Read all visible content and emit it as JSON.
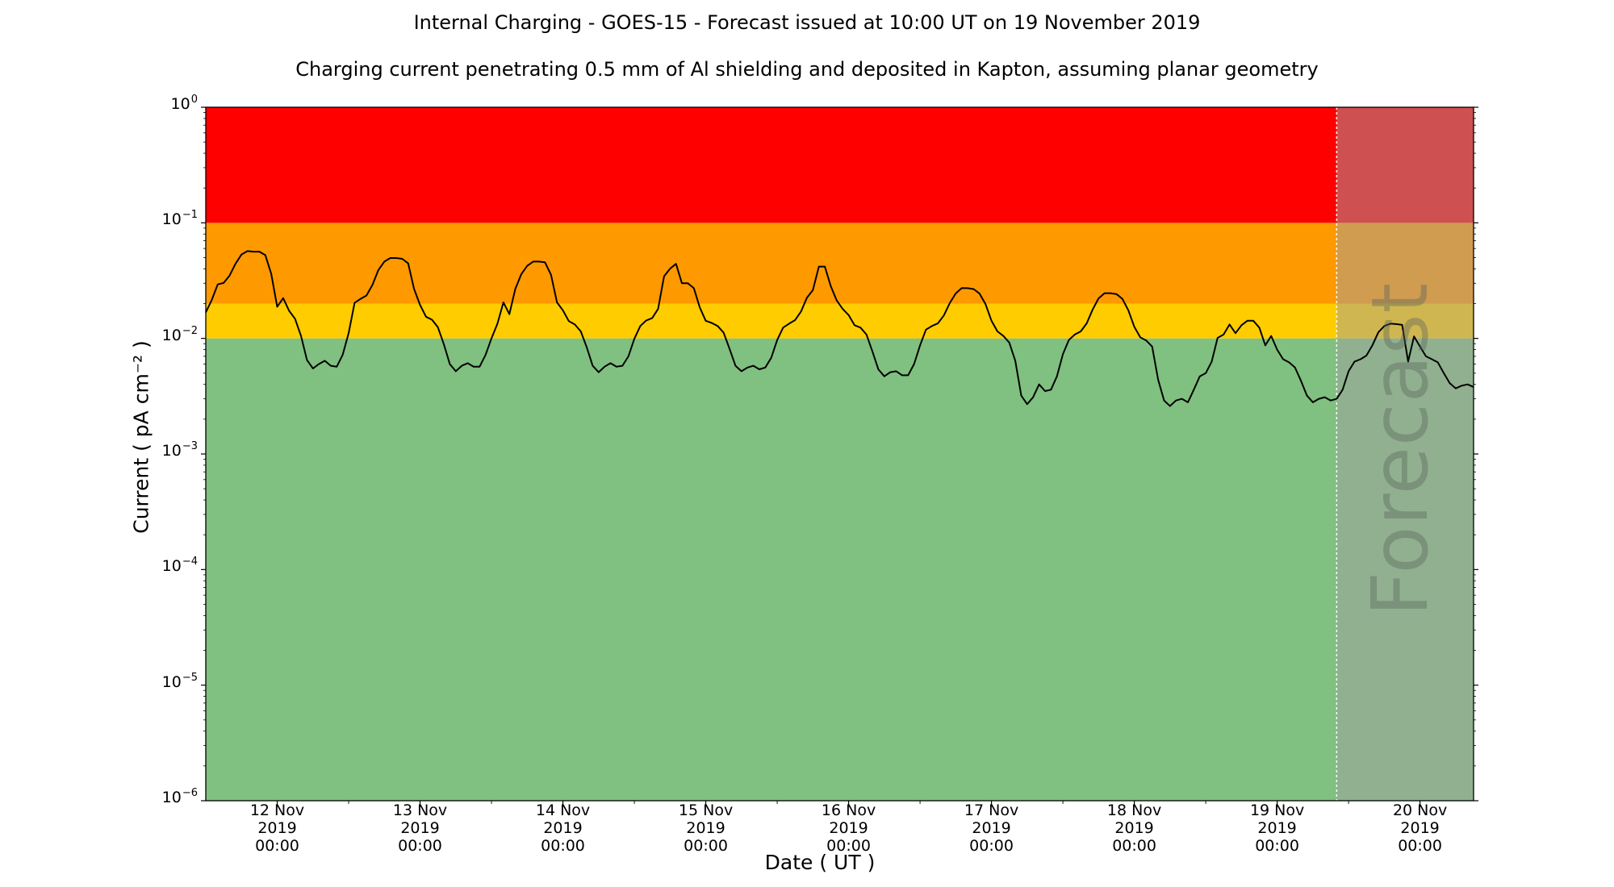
{
  "chart_data": {
    "type": "line",
    "title": "Internal Charging - GOES-15 - Forecast issued at 10:00 UT on 19 November 2019",
    "subtitle": "Charging current penetrating 0.5 mm of Al shielding and deposited in Kapton, assuming planar geometry",
    "xlabel": "Date ( UT )",
    "ylabel": "Current ( pA cm⁻² )",
    "y_scale": "log",
    "ylim": [
      1e-06,
      1
    ],
    "xlim": [
      "2019-11-11T12:00",
      "2019-11-20T09:00"
    ],
    "y_ticks": [
      {
        "base": "10",
        "exp": "−6",
        "value": 1e-06
      },
      {
        "base": "10",
        "exp": "−5",
        "value": 1e-05
      },
      {
        "base": "10",
        "exp": "−4",
        "value": 0.0001
      },
      {
        "base": "10",
        "exp": "−3",
        "value": 0.001
      },
      {
        "base": "10",
        "exp": "−2",
        "value": 0.01
      },
      {
        "base": "10",
        "exp": "−1",
        "value": 0.1
      },
      {
        "base": "10",
        "exp": "0",
        "value": 1
      }
    ],
    "x_ticks": [
      {
        "line1": "12 Nov",
        "line2": "2019",
        "line3": "00:00",
        "value": "2019-11-12T00:00"
      },
      {
        "line1": "13 Nov",
        "line2": "2019",
        "line3": "00:00",
        "value": "2019-11-13T00:00"
      },
      {
        "line1": "14 Nov",
        "line2": "2019",
        "line3": "00:00",
        "value": "2019-11-14T00:00"
      },
      {
        "line1": "15 Nov",
        "line2": "2019",
        "line3": "00:00",
        "value": "2019-11-15T00:00"
      },
      {
        "line1": "16 Nov",
        "line2": "2019",
        "line3": "00:00",
        "value": "2019-11-16T00:00"
      },
      {
        "line1": "17 Nov",
        "line2": "2019",
        "line3": "00:00",
        "value": "2019-11-17T00:00"
      },
      {
        "line1": "18 Nov",
        "line2": "2019",
        "line3": "00:00",
        "value": "2019-11-18T00:00"
      },
      {
        "line1": "19 Nov",
        "line2": "2019",
        "line3": "00:00",
        "value": "2019-11-19T00:00"
      },
      {
        "line1": "20 Nov",
        "line2": "2019",
        "line3": "00:00",
        "value": "2019-11-20T00:00"
      }
    ],
    "risk_bands": [
      {
        "from": 1e-06,
        "to": 0.01,
        "color": "#80c080"
      },
      {
        "from": 0.01,
        "to": 0.02,
        "color": "#ffcc00"
      },
      {
        "from": 0.02,
        "to": 0.1,
        "color": "#ff9900"
      },
      {
        "from": 0.1,
        "to": 1,
        "color": "#ff0000"
      }
    ],
    "forecast_region": {
      "start": "2019-11-19T10:00",
      "end": "2019-11-20T09:00",
      "label": "Forecast",
      "overlay_color": "#a0a0a0",
      "overlay_opacity": 0.5
    },
    "grid": false,
    "series": [
      {
        "color": "#000000",
        "points": [
          [
            "2019-11-11T12:00",
            0.0168
          ],
          [
            "2019-11-11T13:00",
            0.0215
          ],
          [
            "2019-11-11T14:00",
            0.0293
          ],
          [
            "2019-11-11T15:00",
            0.0302
          ],
          [
            "2019-11-11T16:00",
            0.035
          ],
          [
            "2019-11-11T17:00",
            0.0444
          ],
          [
            "2019-11-11T18:00",
            0.0532
          ],
          [
            "2019-11-11T19:00",
            0.0569
          ],
          [
            "2019-11-11T20:00",
            0.0563
          ],
          [
            "2019-11-11T21:00",
            0.0563
          ],
          [
            "2019-11-11T22:00",
            0.0525
          ],
          [
            "2019-11-11T23:00",
            0.0362
          ],
          [
            "2019-11-12T00:00",
            0.0188
          ],
          [
            "2019-11-12T01:00",
            0.0223
          ],
          [
            "2019-11-12T02:00",
            0.0173
          ],
          [
            "2019-11-12T03:00",
            0.0148
          ],
          [
            "2019-11-12T04:00",
            0.0105
          ],
          [
            "2019-11-12T05:00",
            0.0065
          ],
          [
            "2019-11-12T06:00",
            0.0055
          ],
          [
            "2019-11-12T07:00",
            0.006
          ],
          [
            "2019-11-12T08:00",
            0.0064
          ],
          [
            "2019-11-12T09:00",
            0.0058
          ],
          [
            "2019-11-12T10:00",
            0.0057
          ],
          [
            "2019-11-12T11:00",
            0.0072
          ],
          [
            "2019-11-12T12:00",
            0.0111
          ],
          [
            "2019-11-12T13:00",
            0.0203
          ],
          [
            "2019-11-12T14:00",
            0.022
          ],
          [
            "2019-11-12T15:00",
            0.0235
          ],
          [
            "2019-11-12T16:00",
            0.029
          ],
          [
            "2019-11-12T17:00",
            0.0391
          ],
          [
            "2019-11-12T18:00",
            0.0462
          ],
          [
            "2019-11-12T19:00",
            0.0496
          ],
          [
            "2019-11-12T20:00",
            0.0496
          ],
          [
            "2019-11-12T21:00",
            0.0488
          ],
          [
            "2019-11-12T22:00",
            0.0446
          ],
          [
            "2019-11-12T23:00",
            0.0268
          ],
          [
            "2019-11-13T00:00",
            0.0195
          ],
          [
            "2019-11-13T01:00",
            0.0154
          ],
          [
            "2019-11-13T02:00",
            0.0145
          ],
          [
            "2019-11-13T03:00",
            0.0125
          ],
          [
            "2019-11-13T04:00",
            0.0089
          ],
          [
            "2019-11-13T05:00",
            0.006
          ],
          [
            "2019-11-13T06:00",
            0.0052
          ],
          [
            "2019-11-13T07:00",
            0.0058
          ],
          [
            "2019-11-13T08:00",
            0.0061
          ],
          [
            "2019-11-13T09:00",
            0.0057
          ],
          [
            "2019-11-13T10:00",
            0.0057
          ],
          [
            "2019-11-13T11:00",
            0.0072
          ],
          [
            "2019-11-13T12:00",
            0.01
          ],
          [
            "2019-11-13T13:00",
            0.0134
          ],
          [
            "2019-11-13T14:00",
            0.0205
          ],
          [
            "2019-11-13T15:00",
            0.0162
          ],
          [
            "2019-11-13T16:00",
            0.0267
          ],
          [
            "2019-11-13T17:00",
            0.0359
          ],
          [
            "2019-11-13T18:00",
            0.0424
          ],
          [
            "2019-11-13T19:00",
            0.0462
          ],
          [
            "2019-11-13T20:00",
            0.0462
          ],
          [
            "2019-11-13T21:00",
            0.0455
          ],
          [
            "2019-11-13T22:00",
            0.0355
          ],
          [
            "2019-11-13T23:00",
            0.0205
          ],
          [
            "2019-11-14T00:00",
            0.0175
          ],
          [
            "2019-11-14T01:00",
            0.0141
          ],
          [
            "2019-11-14T02:00",
            0.0132
          ],
          [
            "2019-11-14T03:00",
            0.0115
          ],
          [
            "2019-11-14T04:00",
            0.0084
          ],
          [
            "2019-11-14T05:00",
            0.0058
          ],
          [
            "2019-11-14T06:00",
            0.0051
          ],
          [
            "2019-11-14T07:00",
            0.0057
          ],
          [
            "2019-11-14T08:00",
            0.0061
          ],
          [
            "2019-11-14T09:00",
            0.0057
          ],
          [
            "2019-11-14T10:00",
            0.0058
          ],
          [
            "2019-11-14T11:00",
            0.007
          ],
          [
            "2019-11-14T12:00",
            0.0099
          ],
          [
            "2019-11-14T13:00",
            0.0128
          ],
          [
            "2019-11-14T14:00",
            0.0143
          ],
          [
            "2019-11-14T15:00",
            0.015
          ],
          [
            "2019-11-14T16:00",
            0.018
          ],
          [
            "2019-11-14T17:00",
            0.0345
          ],
          [
            "2019-11-14T18:00",
            0.0401
          ],
          [
            "2019-11-14T19:00",
            0.0442
          ],
          [
            "2019-11-14T20:00",
            0.03
          ],
          [
            "2019-11-14T21:00",
            0.03
          ],
          [
            "2019-11-14T22:00",
            0.0272
          ],
          [
            "2019-11-14T23:00",
            0.0185
          ],
          [
            "2019-11-15T00:00",
            0.0142
          ],
          [
            "2019-11-15T01:00",
            0.0136
          ],
          [
            "2019-11-15T02:00",
            0.0128
          ],
          [
            "2019-11-15T03:00",
            0.0112
          ],
          [
            "2019-11-15T04:00",
            0.0081
          ],
          [
            "2019-11-15T05:00",
            0.0058
          ],
          [
            "2019-11-15T06:00",
            0.0052
          ],
          [
            "2019-11-15T07:00",
            0.0056
          ],
          [
            "2019-11-15T08:00",
            0.0058
          ],
          [
            "2019-11-15T09:00",
            0.0054
          ],
          [
            "2019-11-15T10:00",
            0.0056
          ],
          [
            "2019-11-15T11:00",
            0.0068
          ],
          [
            "2019-11-15T12:00",
            0.0097
          ],
          [
            "2019-11-15T13:00",
            0.0124
          ],
          [
            "2019-11-15T14:00",
            0.0134
          ],
          [
            "2019-11-15T15:00",
            0.0144
          ],
          [
            "2019-11-15T16:00",
            0.0171
          ],
          [
            "2019-11-15T17:00",
            0.0225
          ],
          [
            "2019-11-15T18:00",
            0.0262
          ],
          [
            "2019-11-15T19:00",
            0.0418
          ],
          [
            "2019-11-15T20:00",
            0.0418
          ],
          [
            "2019-11-15T21:00",
            0.0284
          ],
          [
            "2019-11-15T22:00",
            0.0213
          ],
          [
            "2019-11-15T23:00",
            0.018
          ],
          [
            "2019-11-16T00:00",
            0.0159
          ],
          [
            "2019-11-16T01:00",
            0.013
          ],
          [
            "2019-11-16T02:00",
            0.0124
          ],
          [
            "2019-11-16T03:00",
            0.0108
          ],
          [
            "2019-11-16T04:00",
            0.0077
          ],
          [
            "2019-11-16T05:00",
            0.0054
          ],
          [
            "2019-11-16T06:00",
            0.0047
          ],
          [
            "2019-11-16T07:00",
            0.0051
          ],
          [
            "2019-11-16T08:00",
            0.0052
          ],
          [
            "2019-11-16T09:00",
            0.0048
          ],
          [
            "2019-11-16T10:00",
            0.0048
          ],
          [
            "2019-11-16T11:00",
            0.006
          ],
          [
            "2019-11-16T12:00",
            0.0087
          ],
          [
            "2019-11-16T13:00",
            0.0119
          ],
          [
            "2019-11-16T14:00",
            0.0128
          ],
          [
            "2019-11-16T15:00",
            0.0135
          ],
          [
            "2019-11-16T16:00",
            0.0158
          ],
          [
            "2019-11-16T17:00",
            0.0202
          ],
          [
            "2019-11-16T18:00",
            0.0245
          ],
          [
            "2019-11-16T19:00",
            0.0273
          ],
          [
            "2019-11-16T20:00",
            0.0272
          ],
          [
            "2019-11-16T21:00",
            0.0267
          ],
          [
            "2019-11-16T22:00",
            0.0244
          ],
          [
            "2019-11-16T23:00",
            0.0198
          ],
          [
            "2019-11-17T00:00",
            0.0142
          ],
          [
            "2019-11-17T01:00",
            0.0115
          ],
          [
            "2019-11-17T02:00",
            0.0105
          ],
          [
            "2019-11-17T03:00",
            0.0092
          ],
          [
            "2019-11-17T04:00",
            0.0064
          ],
          [
            "2019-11-17T05:00",
            0.0032
          ],
          [
            "2019-11-17T06:00",
            0.0027
          ],
          [
            "2019-11-17T07:00",
            0.0031
          ],
          [
            "2019-11-17T08:00",
            0.004
          ],
          [
            "2019-11-17T09:00",
            0.0035
          ],
          [
            "2019-11-17T10:00",
            0.0036
          ],
          [
            "2019-11-17T11:00",
            0.0047
          ],
          [
            "2019-11-17T12:00",
            0.0073
          ],
          [
            "2019-11-17T13:00",
            0.0097
          ],
          [
            "2019-11-17T14:00",
            0.0108
          ],
          [
            "2019-11-17T15:00",
            0.0115
          ],
          [
            "2019-11-17T16:00",
            0.0135
          ],
          [
            "2019-11-17T17:00",
            0.0178
          ],
          [
            "2019-11-17T18:00",
            0.0222
          ],
          [
            "2019-11-17T19:00",
            0.0246
          ],
          [
            "2019-11-17T20:00",
            0.0246
          ],
          [
            "2019-11-17T21:00",
            0.0242
          ],
          [
            "2019-11-17T22:00",
            0.022
          ],
          [
            "2019-11-17T23:00",
            0.0175
          ],
          [
            "2019-11-18T00:00",
            0.0126
          ],
          [
            "2019-11-18T01:00",
            0.0102
          ],
          [
            "2019-11-18T02:00",
            0.0096
          ],
          [
            "2019-11-18T03:00",
            0.0085
          ],
          [
            "2019-11-18T04:00",
            0.0044
          ],
          [
            "2019-11-18T05:00",
            0.0029
          ],
          [
            "2019-11-18T06:00",
            0.0026
          ],
          [
            "2019-11-18T07:00",
            0.0029
          ],
          [
            "2019-11-18T08:00",
            0.003
          ],
          [
            "2019-11-18T09:00",
            0.0028
          ],
          [
            "2019-11-18T10:00",
            0.0036
          ],
          [
            "2019-11-18T11:00",
            0.0047
          ],
          [
            "2019-11-18T12:00",
            0.005
          ],
          [
            "2019-11-18T13:00",
            0.0063
          ],
          [
            "2019-11-18T14:00",
            0.0101
          ],
          [
            "2019-11-18T15:00",
            0.0108
          ],
          [
            "2019-11-18T16:00",
            0.0132
          ],
          [
            "2019-11-18T17:00",
            0.0111
          ],
          [
            "2019-11-18T18:00",
            0.013
          ],
          [
            "2019-11-18T19:00",
            0.0142
          ],
          [
            "2019-11-18T20:00",
            0.0142
          ],
          [
            "2019-11-18T21:00",
            0.0124
          ],
          [
            "2019-11-18T22:00",
            0.0087
          ],
          [
            "2019-11-18T23:00",
            0.0105
          ],
          [
            "2019-11-19T00:00",
            0.008
          ],
          [
            "2019-11-19T01:00",
            0.0066
          ],
          [
            "2019-11-19T02:00",
            0.0062
          ],
          [
            "2019-11-19T03:00",
            0.0056
          ],
          [
            "2019-11-19T04:00",
            0.0043
          ],
          [
            "2019-11-19T05:00",
            0.0032
          ],
          [
            "2019-11-19T06:00",
            0.0028
          ],
          [
            "2019-11-19T07:00",
            0.003
          ],
          [
            "2019-11-19T08:00",
            0.0031
          ],
          [
            "2019-11-19T09:00",
            0.0029
          ],
          [
            "2019-11-19T10:00",
            0.003
          ],
          [
            "2019-11-19T11:00",
            0.0036
          ],
          [
            "2019-11-19T12:00",
            0.0052
          ],
          [
            "2019-11-19T13:00",
            0.0063
          ],
          [
            "2019-11-19T14:00",
            0.0066
          ],
          [
            "2019-11-19T15:00",
            0.0071
          ],
          [
            "2019-11-19T16:00",
            0.0087
          ],
          [
            "2019-11-19T17:00",
            0.0113
          ],
          [
            "2019-11-19T18:00",
            0.0128
          ],
          [
            "2019-11-19T19:00",
            0.0134
          ],
          [
            "2019-11-19T20:00",
            0.0133
          ],
          [
            "2019-11-19T21:00",
            0.0131
          ],
          [
            "2019-11-19T22:00",
            0.0063
          ],
          [
            "2019-11-19T23:00",
            0.0104
          ],
          [
            "2019-11-20T00:00",
            0.0085
          ],
          [
            "2019-11-20T01:00",
            0.007
          ],
          [
            "2019-11-20T02:00",
            0.0066
          ],
          [
            "2019-11-20T03:00",
            0.0062
          ],
          [
            "2019-11-20T04:00",
            0.005
          ],
          [
            "2019-11-20T05:00",
            0.0041
          ],
          [
            "2019-11-20T06:00",
            0.0037
          ],
          [
            "2019-11-20T07:00",
            0.0039
          ],
          [
            "2019-11-20T08:00",
            0.004
          ],
          [
            "2019-11-20T09:00",
            0.0038
          ]
        ]
      }
    ]
  }
}
